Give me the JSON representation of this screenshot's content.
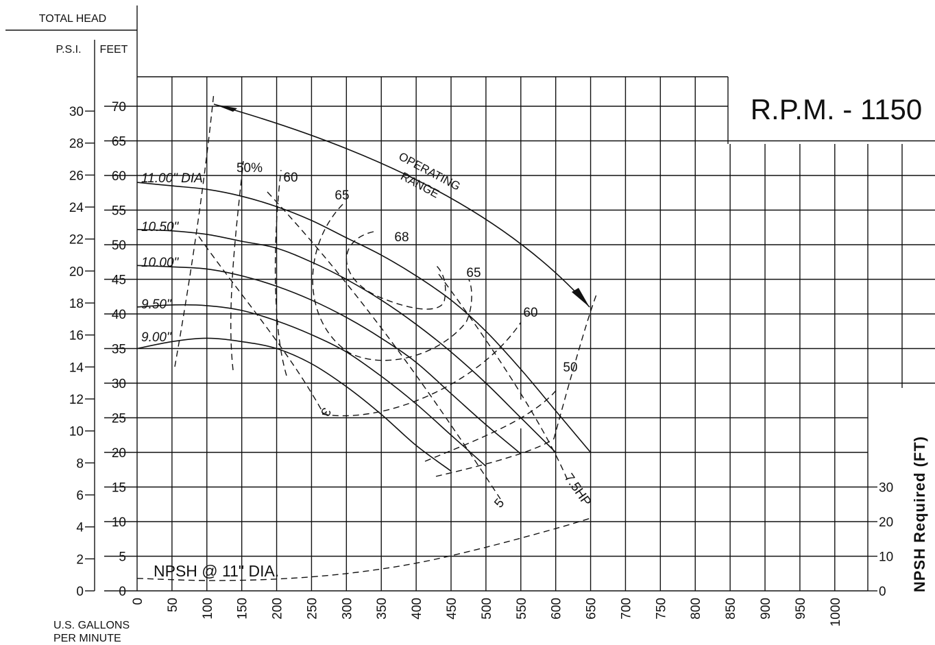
{
  "header": {
    "total_head": "TOTAL HEAD",
    "psi": "P.S.I.",
    "feet": "FEET",
    "rpm": "R.P.M.  -  1150",
    "x_unit_line1": "U.S. GALLONS",
    "x_unit_line2": "PER MINUTE",
    "npsh_axis": "NPSH  Required  (FT)"
  },
  "chart_data": {
    "type": "line",
    "x_axis": {
      "label": "U.S. GALLONS PER MINUTE",
      "range": [
        0,
        1050
      ],
      "ticks": [
        0,
        50,
        100,
        150,
        200,
        250,
        300,
        350,
        400,
        450,
        500,
        550,
        600,
        650,
        700,
        750,
        800,
        850,
        900,
        950,
        1000
      ]
    },
    "y_axis_feet": {
      "label": "FEET",
      "range": [
        0,
        75
      ],
      "ticks": [
        0,
        5,
        10,
        15,
        20,
        25,
        30,
        35,
        40,
        45,
        50,
        55,
        60,
        65,
        70
      ]
    },
    "y_axis_psi": {
      "label": "P.S.I.",
      "ticks": [
        0,
        2,
        4,
        6,
        8,
        10,
        12,
        14,
        16,
        18,
        20,
        22,
        24,
        26,
        28,
        30
      ]
    },
    "y_axis_npsh": {
      "label": "NPSH Required (FT)",
      "ticks": [
        0,
        10,
        20,
        30
      ]
    },
    "grid": true,
    "series": [
      {
        "name": "11.00\" DIA",
        "style": "solid",
        "x": [
          0,
          50,
          100,
          150,
          200,
          250,
          300,
          350,
          400,
          450,
          500,
          550,
          600,
          650
        ],
        "y": [
          59,
          58.5,
          58,
          57,
          55.5,
          53.5,
          51,
          48.5,
          45.5,
          42,
          37.5,
          32,
          26,
          20
        ]
      },
      {
        "name": "10.50\"",
        "style": "solid",
        "x": [
          0,
          50,
          100,
          150,
          200,
          250,
          300,
          350,
          400,
          450,
          500,
          550,
          600
        ],
        "y": [
          52.2,
          52,
          51.5,
          50.5,
          49.5,
          47.5,
          45,
          42,
          38.5,
          34.5,
          30,
          25,
          20
        ]
      },
      {
        "name": "10.00\"",
        "style": "solid",
        "x": [
          0,
          50,
          100,
          150,
          200,
          250,
          300,
          350,
          400,
          450,
          500,
          550
        ],
        "y": [
          47,
          46.8,
          46.5,
          45.5,
          44,
          42,
          39.5,
          36.5,
          33,
          28.5,
          24,
          19.8
        ]
      },
      {
        "name": "9.50\"",
        "style": "solid",
        "x": [
          0,
          50,
          100,
          150,
          200,
          250,
          300,
          350,
          400,
          450,
          500
        ],
        "y": [
          41,
          41.3,
          41.2,
          40.5,
          39,
          37,
          34.5,
          31,
          27,
          22.5,
          18
        ]
      },
      {
        "name": "9.00\"",
        "style": "solid",
        "x": [
          0,
          50,
          100,
          150,
          200,
          250,
          300,
          350,
          400,
          450
        ],
        "y": [
          35,
          36,
          36.5,
          36,
          35,
          32.8,
          29.5,
          25.5,
          21,
          17.3
        ]
      },
      {
        "name": "NPSH @ 11\" DIA.",
        "style": "dashed",
        "x": [
          0,
          100,
          200,
          300,
          400,
          500,
          600,
          650
        ],
        "y": [
          1.8,
          1.5,
          1.7,
          2.5,
          4,
          6.3,
          9,
          10.5
        ]
      }
    ],
    "efficiency_labels": [
      "50%",
      "60",
      "65",
      "68",
      "65",
      "60",
      "50"
    ],
    "power_labels": [
      "3",
      "5",
      "7.5HP"
    ],
    "dia_labels": [
      "11.00\" DIA",
      "10.50\"",
      "10.00\"",
      "9.50\"",
      "9.00\""
    ],
    "npsh_label": "NPSH @ 11\" DIA.",
    "annotation_line1": "OPERATING",
    "annotation_line2": "RANGE",
    "operating_range_gpm": [
      100,
      650
    ]
  }
}
